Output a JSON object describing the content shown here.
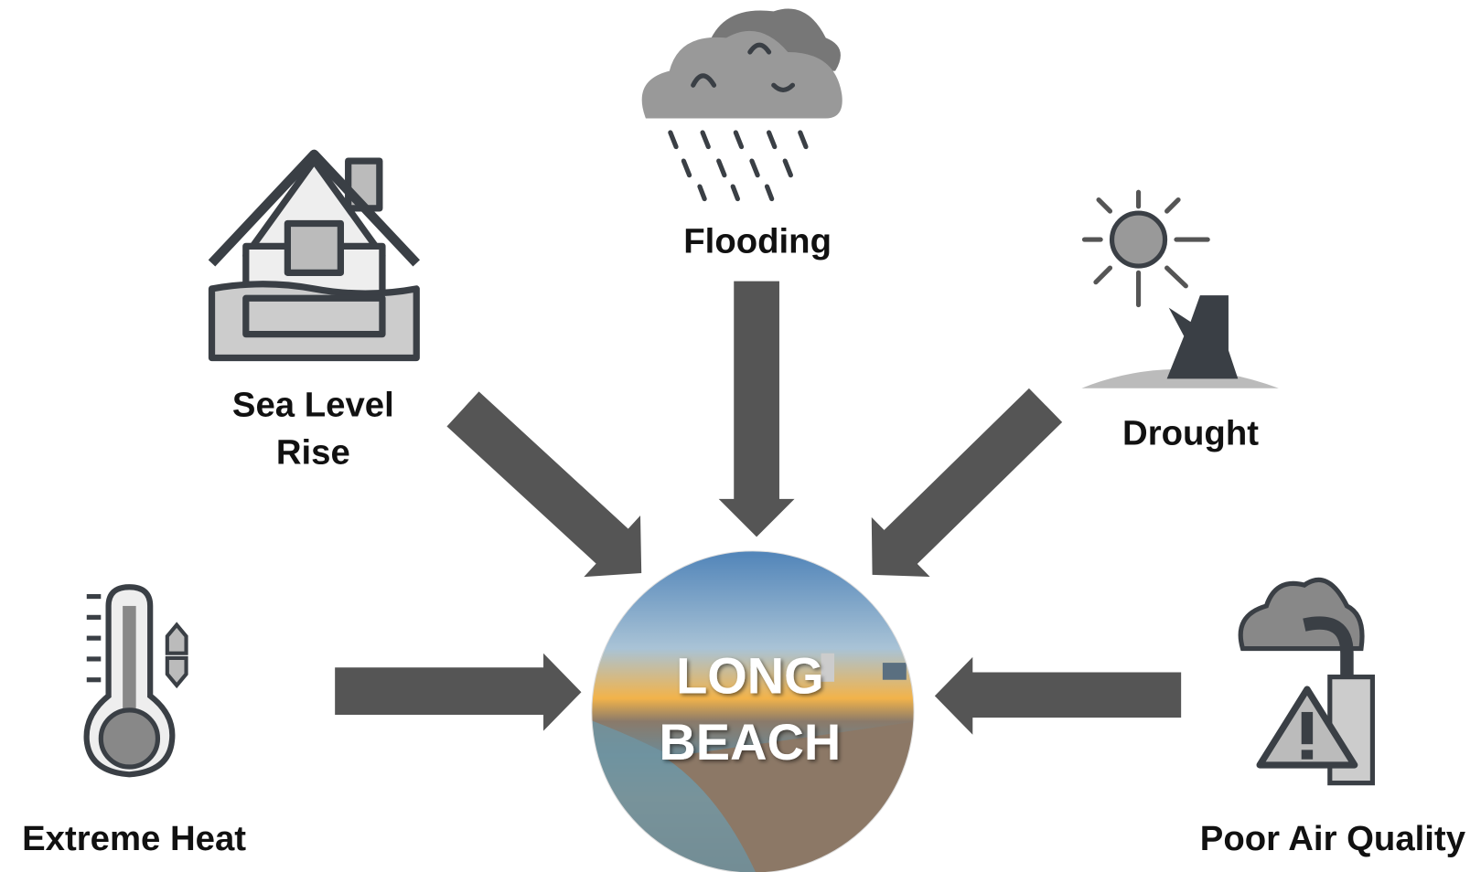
{
  "center": {
    "lines": [
      "LONG",
      "BEACH"
    ]
  },
  "nodes": [
    {
      "label": "Flooding"
    },
    {
      "lines": [
        "Sea Level",
        "Rise"
      ]
    },
    {
      "label": "Drought"
    },
    {
      "label": "Extreme Heat"
    },
    {
      "label": "Poor Air Quality"
    }
  ]
}
